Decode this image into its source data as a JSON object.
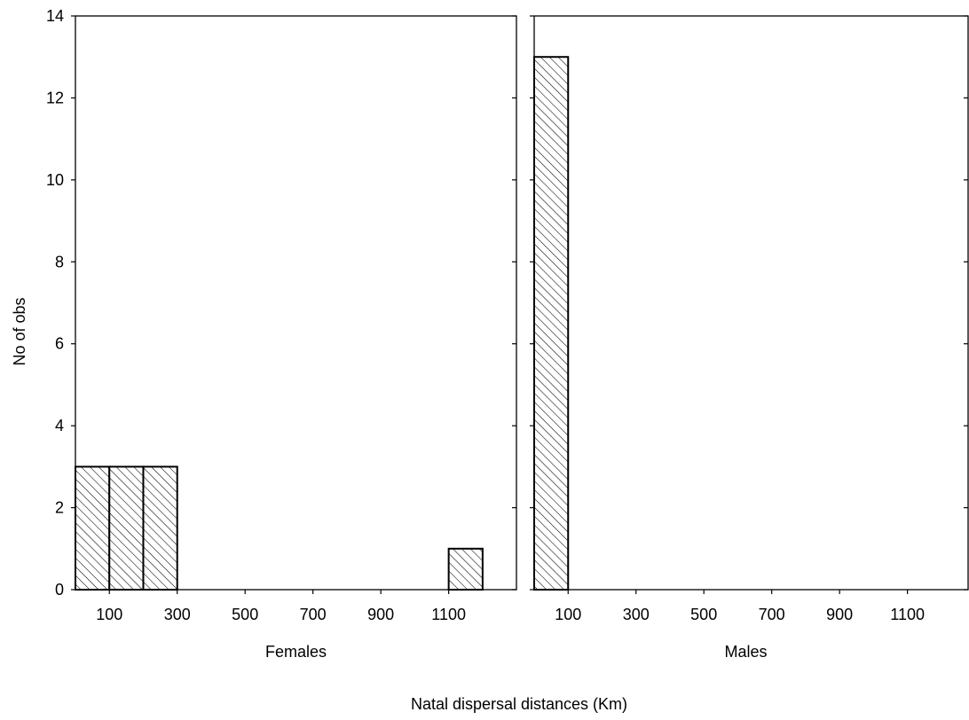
{
  "chart_data": {
    "type": "bar",
    "subtype": "histogram",
    "ylabel": "No of obs",
    "xlabel": "Natal dispersal distances (Km)",
    "ylim": [
      0,
      14
    ],
    "yticks": [
      0,
      2,
      4,
      6,
      8,
      10,
      12,
      14
    ],
    "xlim": [
      0,
      1300
    ],
    "xticks": [
      100,
      300,
      500,
      700,
      900,
      1100
    ],
    "panels": [
      {
        "label": "Females",
        "xtick_labels": [
          "100",
          "300",
          "500",
          "700",
          "900",
          "1100"
        ],
        "bins": [
          {
            "from": 0,
            "to": 100,
            "count": 3
          },
          {
            "from": 100,
            "to": 200,
            "count": 3
          },
          {
            "from": 200,
            "to": 300,
            "count": 3
          },
          {
            "from": 1100,
            "to": 1200,
            "count": 1
          }
        ]
      },
      {
        "label": "Males",
        "xtick_labels": [
          "100",
          "300",
          "500",
          "700",
          "900",
          "1100"
        ],
        "bins": [
          {
            "from": 0,
            "to": 100,
            "count": 13
          }
        ]
      }
    ],
    "bar_fill": "diagonal-hatch",
    "colors": {
      "bar_stroke": "#000000",
      "hatch": "#000000",
      "background": "#ffffff"
    }
  }
}
